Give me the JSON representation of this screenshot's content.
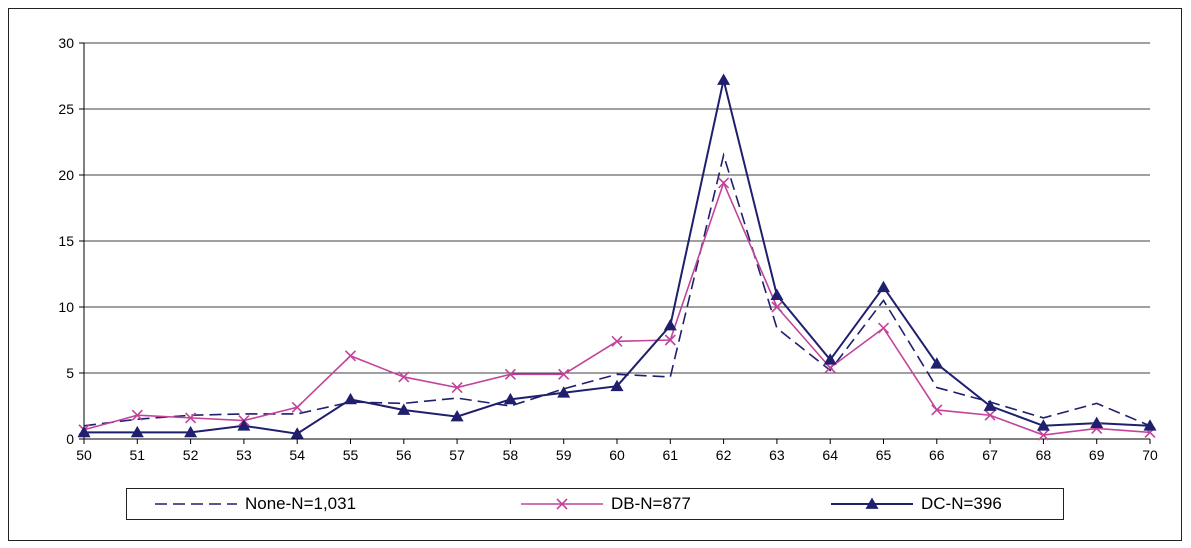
{
  "chart_data": {
    "type": "line",
    "title": "",
    "xlabel": "",
    "ylabel": "",
    "x": [
      50,
      51,
      52,
      53,
      54,
      55,
      56,
      57,
      58,
      59,
      60,
      61,
      62,
      63,
      64,
      65,
      66,
      67,
      68,
      69,
      70
    ],
    "x_tick_labels": [
      "50",
      "51",
      "52",
      "53",
      "54",
      "55",
      "56",
      "57",
      "58",
      "59",
      "60",
      "61",
      "62",
      "63",
      "64",
      "65",
      "66",
      "67",
      "68",
      "69",
      "70"
    ],
    "ylim": [
      0,
      30
    ],
    "y_ticks": [
      0,
      5,
      10,
      15,
      20,
      25,
      30
    ],
    "y_tick_labels": [
      "0",
      "5",
      "10",
      "15",
      "20",
      "25",
      "30"
    ],
    "grid": "horizontal",
    "legend_position": "bottom",
    "series": [
      {
        "name": "None-N=1,031",
        "color": "#1f1f6e",
        "line_style": "dashed",
        "marker": "none",
        "values": [
          1.0,
          1.5,
          1.8,
          1.9,
          1.9,
          2.8,
          2.7,
          3.1,
          2.5,
          3.8,
          4.9,
          4.7,
          21.5,
          8.4,
          5.2,
          10.5,
          3.9,
          2.8,
          1.6,
          2.7,
          1.0
        ]
      },
      {
        "name": "DB-N=877",
        "color": "#c2449a",
        "line_style": "solid",
        "marker": "x",
        "values": [
          0.7,
          1.8,
          1.6,
          1.4,
          2.4,
          6.3,
          4.7,
          3.9,
          4.9,
          4.9,
          7.4,
          7.5,
          19.4,
          10.0,
          5.4,
          8.4,
          2.2,
          1.8,
          0.3,
          0.8,
          0.5
        ]
      },
      {
        "name": "DC-N=396",
        "color": "#1f1f6e",
        "line_style": "solid",
        "marker": "triangle",
        "values": [
          0.5,
          0.5,
          0.5,
          1.0,
          0.4,
          3.0,
          2.2,
          1.7,
          3.0,
          3.5,
          4.0,
          8.6,
          27.2,
          10.9,
          6.0,
          11.5,
          5.7,
          2.5,
          1.0,
          1.2,
          1.0
        ]
      }
    ]
  }
}
